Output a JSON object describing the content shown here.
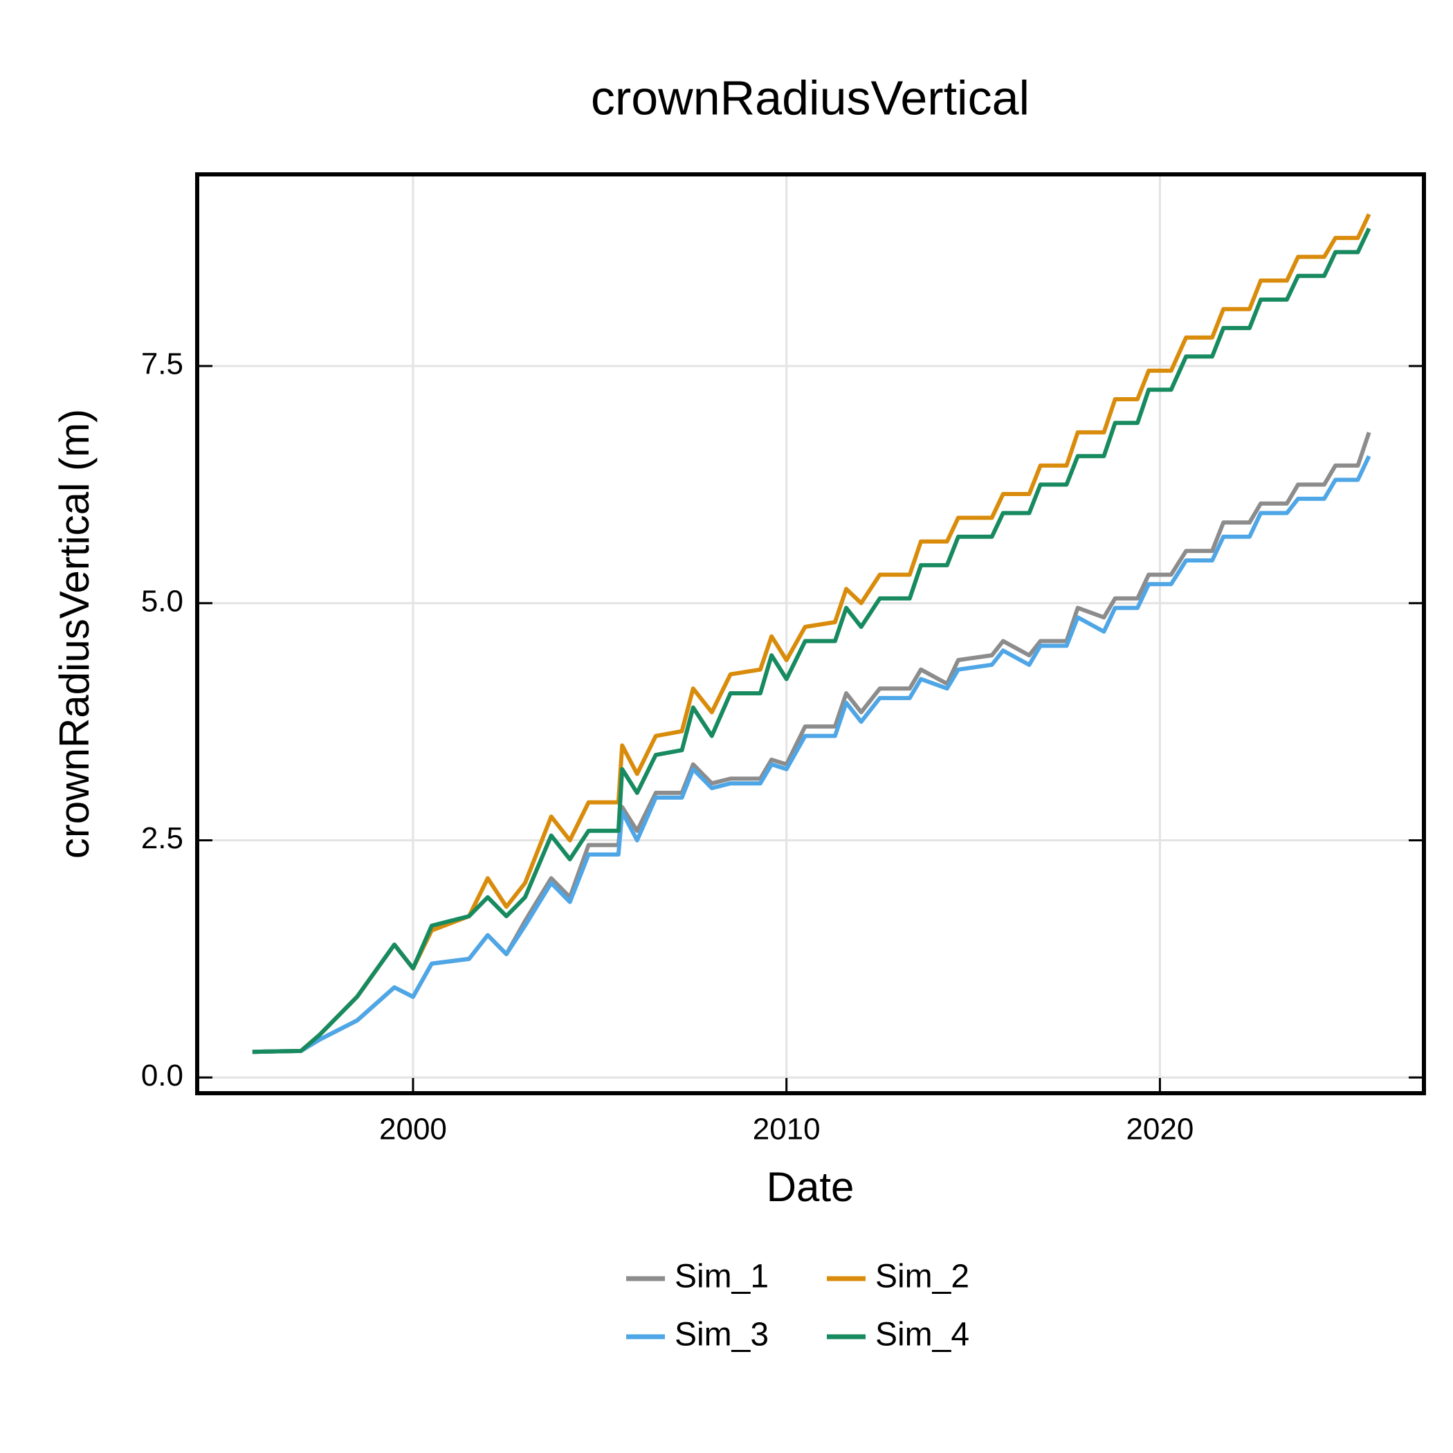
{
  "chart_data": {
    "type": "line",
    "title": "crownRadiusVertical",
    "x_label": "Date",
    "y_label": "crownRadiusVertical (m)",
    "x": [
      1995.7,
      1997.0,
      1997.5,
      1998.5,
      1999.5,
      2000.0,
      2000.5,
      2001.5,
      2002.0,
      2002.5,
      2003.0,
      2003.7,
      2004.2,
      2004.7,
      2005.5,
      2005.6,
      2006.0,
      2006.5,
      2007.2,
      2007.5,
      2008.0,
      2008.5,
      2009.3,
      2009.6,
      2010.0,
      2010.5,
      2011.3,
      2011.6,
      2012.0,
      2012.5,
      2013.3,
      2013.6,
      2014.3,
      2014.6,
      2015.5,
      2015.8,
      2016.5,
      2016.8,
      2017.5,
      2017.8,
      2018.5,
      2018.8,
      2019.4,
      2019.7,
      2020.3,
      2020.7,
      2021.4,
      2021.7,
      2022.4,
      2022.7,
      2023.4,
      2023.7,
      2024.4,
      2024.7,
      2025.3,
      2025.6
    ],
    "series": [
      {
        "name": "Sim_1",
        "color": "#8c8c8c",
        "values": [
          0.27,
          0.28,
          0.4,
          0.6,
          0.95,
          0.85,
          1.2,
          1.25,
          1.5,
          1.3,
          1.65,
          2.1,
          1.9,
          2.45,
          2.45,
          2.85,
          2.6,
          3.0,
          3.0,
          3.3,
          3.1,
          3.15,
          3.15,
          3.35,
          3.3,
          3.7,
          3.7,
          4.05,
          3.85,
          4.1,
          4.1,
          4.3,
          4.15,
          4.4,
          4.45,
          4.6,
          4.45,
          4.6,
          4.6,
          4.95,
          4.85,
          5.05,
          5.05,
          5.3,
          5.3,
          5.55,
          5.55,
          5.85,
          5.85,
          6.05,
          6.05,
          6.25,
          6.25,
          6.45,
          6.45,
          6.8
        ]
      },
      {
        "name": "Sim_2",
        "color": "#d98c0b",
        "values": [
          0.27,
          0.28,
          0.45,
          0.85,
          1.4,
          1.15,
          1.55,
          1.7,
          2.1,
          1.8,
          2.05,
          2.75,
          2.5,
          2.9,
          2.9,
          3.5,
          3.2,
          3.6,
          3.65,
          4.1,
          3.85,
          4.25,
          4.3,
          4.65,
          4.4,
          4.75,
          4.8,
          5.15,
          5.0,
          5.3,
          5.3,
          5.65,
          5.65,
          5.9,
          5.9,
          6.15,
          6.15,
          6.45,
          6.45,
          6.8,
          6.8,
          7.15,
          7.15,
          7.45,
          7.45,
          7.8,
          7.8,
          8.1,
          8.1,
          8.4,
          8.4,
          8.65,
          8.65,
          8.85,
          8.85,
          9.1
        ]
      },
      {
        "name": "Sim_3",
        "color": "#4ea6e6",
        "values": [
          0.27,
          0.28,
          0.4,
          0.6,
          0.95,
          0.85,
          1.2,
          1.25,
          1.5,
          1.3,
          1.6,
          2.05,
          1.85,
          2.35,
          2.35,
          2.8,
          2.5,
          2.95,
          2.95,
          3.25,
          3.05,
          3.1,
          3.1,
          3.3,
          3.25,
          3.6,
          3.6,
          3.95,
          3.75,
          4.0,
          4.0,
          4.2,
          4.1,
          4.3,
          4.35,
          4.5,
          4.35,
          4.55,
          4.55,
          4.85,
          4.7,
          4.95,
          4.95,
          5.2,
          5.2,
          5.45,
          5.45,
          5.7,
          5.7,
          5.95,
          5.95,
          6.1,
          6.1,
          6.3,
          6.3,
          6.55
        ]
      },
      {
        "name": "Sim_4",
        "color": "#178a60",
        "values": [
          0.27,
          0.28,
          0.45,
          0.85,
          1.4,
          1.15,
          1.6,
          1.7,
          1.9,
          1.7,
          1.9,
          2.55,
          2.3,
          2.6,
          2.6,
          3.25,
          3.0,
          3.4,
          3.45,
          3.9,
          3.6,
          4.05,
          4.05,
          4.45,
          4.2,
          4.6,
          4.6,
          4.95,
          4.75,
          5.05,
          5.05,
          5.4,
          5.4,
          5.7,
          5.7,
          5.95,
          5.95,
          6.25,
          6.25,
          6.55,
          6.55,
          6.9,
          6.9,
          7.25,
          7.25,
          7.6,
          7.6,
          7.9,
          7.9,
          8.2,
          8.2,
          8.45,
          8.45,
          8.7,
          8.7,
          8.95
        ]
      }
    ],
    "xlim": [
      1994.22,
      2027.07
    ],
    "xticks": [
      2000,
      2010,
      2020
    ],
    "ylim": [
      -0.166,
      9.52
    ],
    "yticks": [
      {
        "value": 0,
        "label": "0.0"
      },
      2.5,
      {
        "value": 5,
        "label": "5.0"
      },
      7.5
    ],
    "grid": true,
    "legend": "bottom"
  }
}
